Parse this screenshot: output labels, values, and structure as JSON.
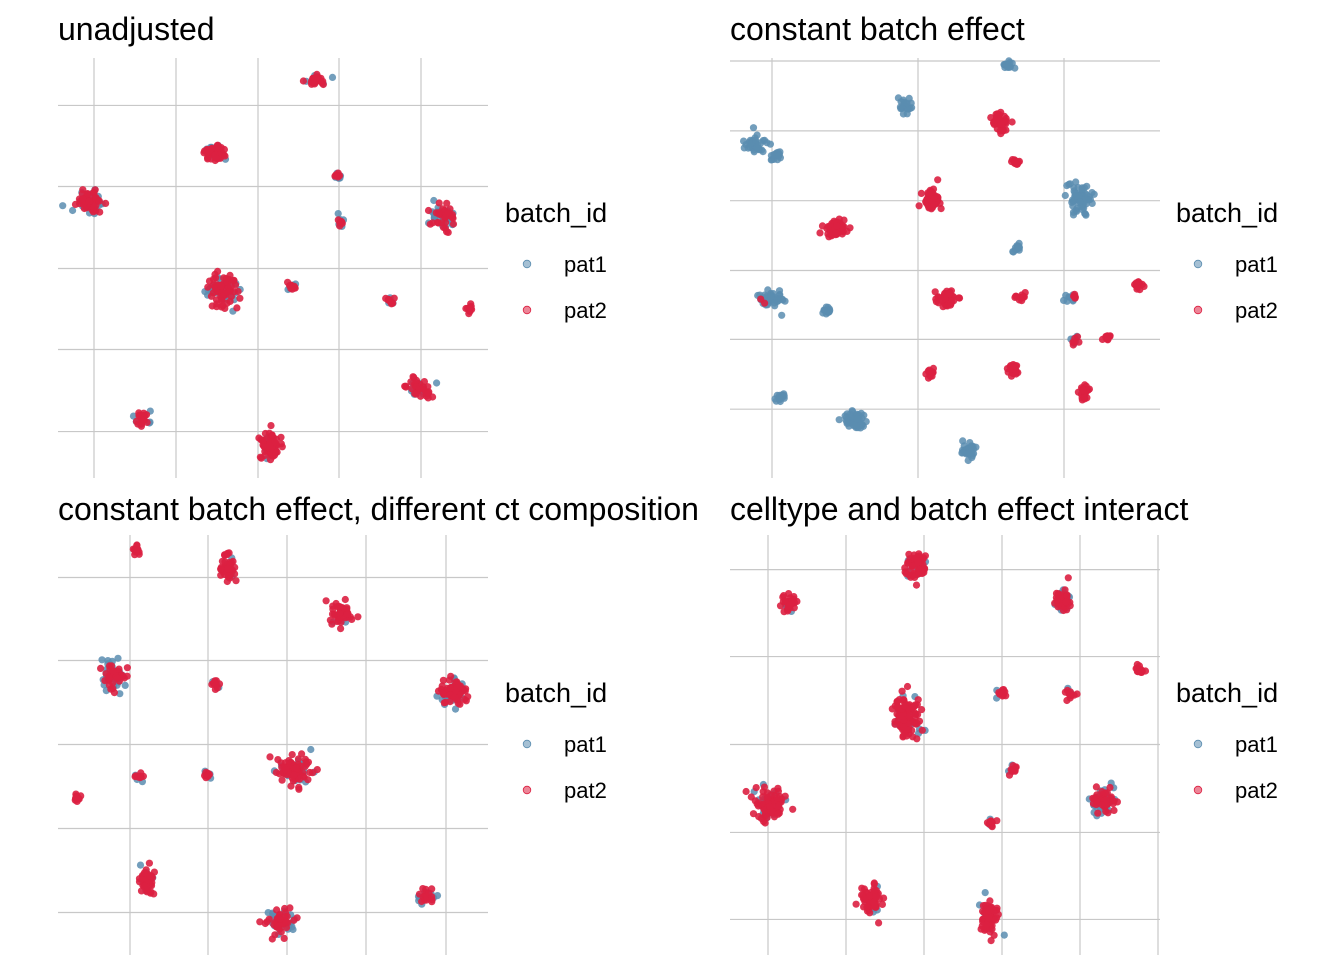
{
  "colors": {
    "pat1": "#5b8db0",
    "pat2": "#dc2041",
    "grid": "#c8c8c8"
  },
  "legend": {
    "title": "batch_id",
    "items": [
      {
        "label": "pat1",
        "color": "#5b8db0"
      },
      {
        "label": "pat2",
        "color": "#dc2041"
      }
    ]
  },
  "chart_data": [
    {
      "type": "scatter",
      "title": "unadjusted",
      "xlabel": "",
      "ylabel": "",
      "grid": true,
      "axis_ticks_labels": false,
      "legend_position": "right",
      "xlim": [
        0,
        430
      ],
      "ylim": [
        0,
        425
      ],
      "xgrid": [
        36,
        118,
        200,
        281,
        363
      ],
      "ygrid": [
        47,
        130,
        212,
        295,
        377
      ],
      "clusters": [
        {
          "x": 257,
          "y": 403,
          "rx": 14,
          "ry": 7,
          "pat1": 0.2,
          "pat2": 0.8
        },
        {
          "x": 158,
          "y": 329,
          "rx": 14,
          "ry": 10,
          "pat1": 0.2,
          "pat2": 0.8
        },
        {
          "x": 32,
          "y": 279,
          "rx": 15,
          "ry": 16,
          "pat1": 0.4,
          "pat2": 0.6
        },
        {
          "x": 280,
          "y": 306,
          "rx": 4,
          "ry": 4,
          "pat1": 0.5,
          "pat2": 0.5
        },
        {
          "x": 283,
          "y": 258,
          "rx": 4,
          "ry": 5,
          "pat1": 0.5,
          "pat2": 0.5
        },
        {
          "x": 385,
          "y": 265,
          "rx": 13,
          "ry": 15,
          "pat1": 0.5,
          "pat2": 0.5
        },
        {
          "x": 165,
          "y": 189,
          "rx": 16,
          "ry": 19,
          "pat1": 0.4,
          "pat2": 0.6
        },
        {
          "x": 234,
          "y": 194,
          "rx": 6,
          "ry": 5,
          "pat1": 0.3,
          "pat2": 0.7
        },
        {
          "x": 332,
          "y": 180,
          "rx": 5,
          "ry": 5,
          "pat1": 0.3,
          "pat2": 0.7
        },
        {
          "x": 411,
          "y": 171,
          "rx": 4,
          "ry": 4,
          "pat1": 0.0,
          "pat2": 1.0
        },
        {
          "x": 361,
          "y": 91,
          "rx": 14,
          "ry": 10,
          "pat1": 0.3,
          "pat2": 0.7
        },
        {
          "x": 85,
          "y": 60,
          "rx": 9,
          "ry": 8,
          "pat1": 0.3,
          "pat2": 0.7
        },
        {
          "x": 213,
          "y": 33,
          "rx": 13,
          "ry": 16,
          "pat1": 0.2,
          "pat2": 0.8
        }
      ]
    },
    {
      "type": "scatter",
      "title": "constant batch effect",
      "xlabel": "",
      "ylabel": "",
      "grid": true,
      "axis_ticks_labels": false,
      "legend_position": "right",
      "xlim": [
        0,
        430
      ],
      "ylim": [
        0,
        415
      ],
      "xgrid": [
        42,
        188,
        334
      ],
      "ygrid": [
        68,
        137,
        205,
        274,
        343,
        412
      ],
      "clusters": [
        {
          "x": 278,
          "y": 408,
          "rx": 5,
          "ry": 5,
          "pat1": 1.0,
          "pat2": 0.0
        },
        {
          "x": 175,
          "y": 368,
          "rx": 7,
          "ry": 9,
          "pat1": 1.0,
          "pat2": 0.0
        },
        {
          "x": 270,
          "y": 351,
          "rx": 9,
          "ry": 12,
          "pat1": 0.0,
          "pat2": 1.0
        },
        {
          "x": 26,
          "y": 329,
          "rx": 11,
          "ry": 10,
          "pat1": 1.0,
          "pat2": 0.0
        },
        {
          "x": 47,
          "y": 318,
          "rx": 6,
          "ry": 5,
          "pat1": 1.0,
          "pat2": 0.0
        },
        {
          "x": 285,
          "y": 313,
          "rx": 4,
          "ry": 4,
          "pat1": 0.0,
          "pat2": 1.0
        },
        {
          "x": 201,
          "y": 276,
          "rx": 11,
          "ry": 14,
          "pat1": 0.0,
          "pat2": 1.0
        },
        {
          "x": 350,
          "y": 276,
          "rx": 14,
          "ry": 15,
          "pat1": 1.0,
          "pat2": 0.0
        },
        {
          "x": 106,
          "y": 247,
          "rx": 14,
          "ry": 11,
          "pat1": 0.0,
          "pat2": 1.0
        },
        {
          "x": 287,
          "y": 226,
          "rx": 5,
          "ry": 5,
          "pat1": 1.0,
          "pat2": 0.0
        },
        {
          "x": 407,
          "y": 191,
          "rx": 7,
          "ry": 6,
          "pat1": 0.0,
          "pat2": 1.0
        },
        {
          "x": 42,
          "y": 176,
          "rx": 13,
          "ry": 10,
          "pat1": 0.95,
          "pat2": 0.05
        },
        {
          "x": 98,
          "y": 166,
          "rx": 5,
          "ry": 5,
          "pat1": 1.0,
          "pat2": 0.0
        },
        {
          "x": 216,
          "y": 177,
          "rx": 13,
          "ry": 10,
          "pat1": 0.0,
          "pat2": 1.0
        },
        {
          "x": 292,
          "y": 179,
          "rx": 5,
          "ry": 5,
          "pat1": 0.0,
          "pat2": 1.0
        },
        {
          "x": 341,
          "y": 179,
          "rx": 7,
          "ry": 7,
          "pat1": 0.7,
          "pat2": 0.3
        },
        {
          "x": 346,
          "y": 136,
          "rx": 5,
          "ry": 5,
          "pat1": 0.6,
          "pat2": 0.4
        },
        {
          "x": 377,
          "y": 139,
          "rx": 5,
          "ry": 4,
          "pat1": 0.0,
          "pat2": 1.0
        },
        {
          "x": 200,
          "y": 104,
          "rx": 7,
          "ry": 6,
          "pat1": 0.0,
          "pat2": 1.0
        },
        {
          "x": 284,
          "y": 107,
          "rx": 9,
          "ry": 7,
          "pat1": 0.0,
          "pat2": 1.0
        },
        {
          "x": 355,
          "y": 84,
          "rx": 6,
          "ry": 10,
          "pat1": 0.0,
          "pat2": 1.0
        },
        {
          "x": 50,
          "y": 80,
          "rx": 7,
          "ry": 6,
          "pat1": 1.0,
          "pat2": 0.0
        },
        {
          "x": 126,
          "y": 57,
          "rx": 14,
          "ry": 10,
          "pat1": 1.0,
          "pat2": 0.0
        },
        {
          "x": 240,
          "y": 25,
          "rx": 8,
          "ry": 11,
          "pat1": 1.0,
          "pat2": 0.0
        }
      ]
    },
    {
      "type": "scatter",
      "title": "constant batch effect, different ct composition",
      "xlabel": "",
      "ylabel": "",
      "grid": true,
      "axis_ticks_labels": false,
      "legend_position": "right",
      "xlim": [
        0,
        430
      ],
      "ylim": [
        0,
        425
      ],
      "xgrid": [
        72,
        150,
        229,
        308,
        388
      ],
      "ygrid": [
        43,
        128,
        213,
        298,
        382
      ],
      "clusters": [
        {
          "x": 78,
          "y": 410,
          "rx": 5,
          "ry": 5,
          "pat1": 0.0,
          "pat2": 1.0
        },
        {
          "x": 170,
          "y": 390,
          "rx": 9,
          "ry": 16,
          "pat1": 0.1,
          "pat2": 0.9
        },
        {
          "x": 284,
          "y": 345,
          "rx": 11,
          "ry": 14,
          "pat1": 0.1,
          "pat2": 0.9
        },
        {
          "x": 55,
          "y": 282,
          "rx": 14,
          "ry": 15,
          "pat1": 0.5,
          "pat2": 0.5
        },
        {
          "x": 157,
          "y": 274,
          "rx": 5,
          "ry": 5,
          "pat1": 0.2,
          "pat2": 0.8
        },
        {
          "x": 396,
          "y": 266,
          "rx": 17,
          "ry": 15,
          "pat1": 0.3,
          "pat2": 0.7
        },
        {
          "x": 236,
          "y": 187,
          "rx": 18,
          "ry": 16,
          "pat1": 0.3,
          "pat2": 0.7
        },
        {
          "x": 150,
          "y": 183,
          "rx": 6,
          "ry": 5,
          "pat1": 0.3,
          "pat2": 0.7
        },
        {
          "x": 81,
          "y": 181,
          "rx": 5,
          "ry": 5,
          "pat1": 0.3,
          "pat2": 0.7
        },
        {
          "x": 20,
          "y": 158,
          "rx": 4,
          "ry": 4,
          "pat1": 0.0,
          "pat2": 1.0
        },
        {
          "x": 89,
          "y": 75,
          "rx": 9,
          "ry": 16,
          "pat1": 0.2,
          "pat2": 0.8
        },
        {
          "x": 368,
          "y": 60,
          "rx": 10,
          "ry": 8,
          "pat1": 0.4,
          "pat2": 0.6
        },
        {
          "x": 222,
          "y": 32,
          "rx": 15,
          "ry": 14,
          "pat1": 0.4,
          "pat2": 0.6
        }
      ]
    },
    {
      "type": "scatter",
      "title": "celltype and batch effect interact",
      "xlabel": "",
      "ylabel": "",
      "grid": true,
      "axis_ticks_labels": false,
      "legend_position": "right",
      "xlim": [
        0,
        430
      ],
      "ylim": [
        0,
        425
      ],
      "xgrid": [
        38,
        116,
        194,
        272,
        350,
        428
      ],
      "ygrid": [
        36,
        124,
        213,
        302,
        390
      ],
      "clusters": [
        {
          "x": 186,
          "y": 394,
          "rx": 12,
          "ry": 15,
          "pat1": 0.2,
          "pat2": 0.8
        },
        {
          "x": 58,
          "y": 355,
          "rx": 9,
          "ry": 10,
          "pat1": 0.1,
          "pat2": 0.9
        },
        {
          "x": 333,
          "y": 360,
          "rx": 9,
          "ry": 18,
          "pat1": 0.3,
          "pat2": 0.7
        },
        {
          "x": 410,
          "y": 288,
          "rx": 5,
          "ry": 5,
          "pat1": 0.0,
          "pat2": 1.0
        },
        {
          "x": 272,
          "y": 265,
          "rx": 6,
          "ry": 6,
          "pat1": 0.2,
          "pat2": 0.8
        },
        {
          "x": 340,
          "y": 265,
          "rx": 6,
          "ry": 6,
          "pat1": 0.2,
          "pat2": 0.8
        },
        {
          "x": 177,
          "y": 240,
          "rx": 14,
          "ry": 24,
          "pat1": 0.2,
          "pat2": 0.8
        },
        {
          "x": 283,
          "y": 187,
          "rx": 6,
          "ry": 6,
          "pat1": 0.2,
          "pat2": 0.8
        },
        {
          "x": 39,
          "y": 152,
          "rx": 19,
          "ry": 17,
          "pat1": 0.3,
          "pat2": 0.7
        },
        {
          "x": 374,
          "y": 155,
          "rx": 14,
          "ry": 16,
          "pat1": 0.5,
          "pat2": 0.5
        },
        {
          "x": 261,
          "y": 134,
          "rx": 5,
          "ry": 5,
          "pat1": 0.2,
          "pat2": 0.8
        },
        {
          "x": 142,
          "y": 55,
          "rx": 11,
          "ry": 17,
          "pat1": 0.1,
          "pat2": 0.9
        },
        {
          "x": 258,
          "y": 40,
          "rx": 10,
          "ry": 20,
          "pat1": 0.1,
          "pat2": 0.9
        }
      ]
    }
  ]
}
